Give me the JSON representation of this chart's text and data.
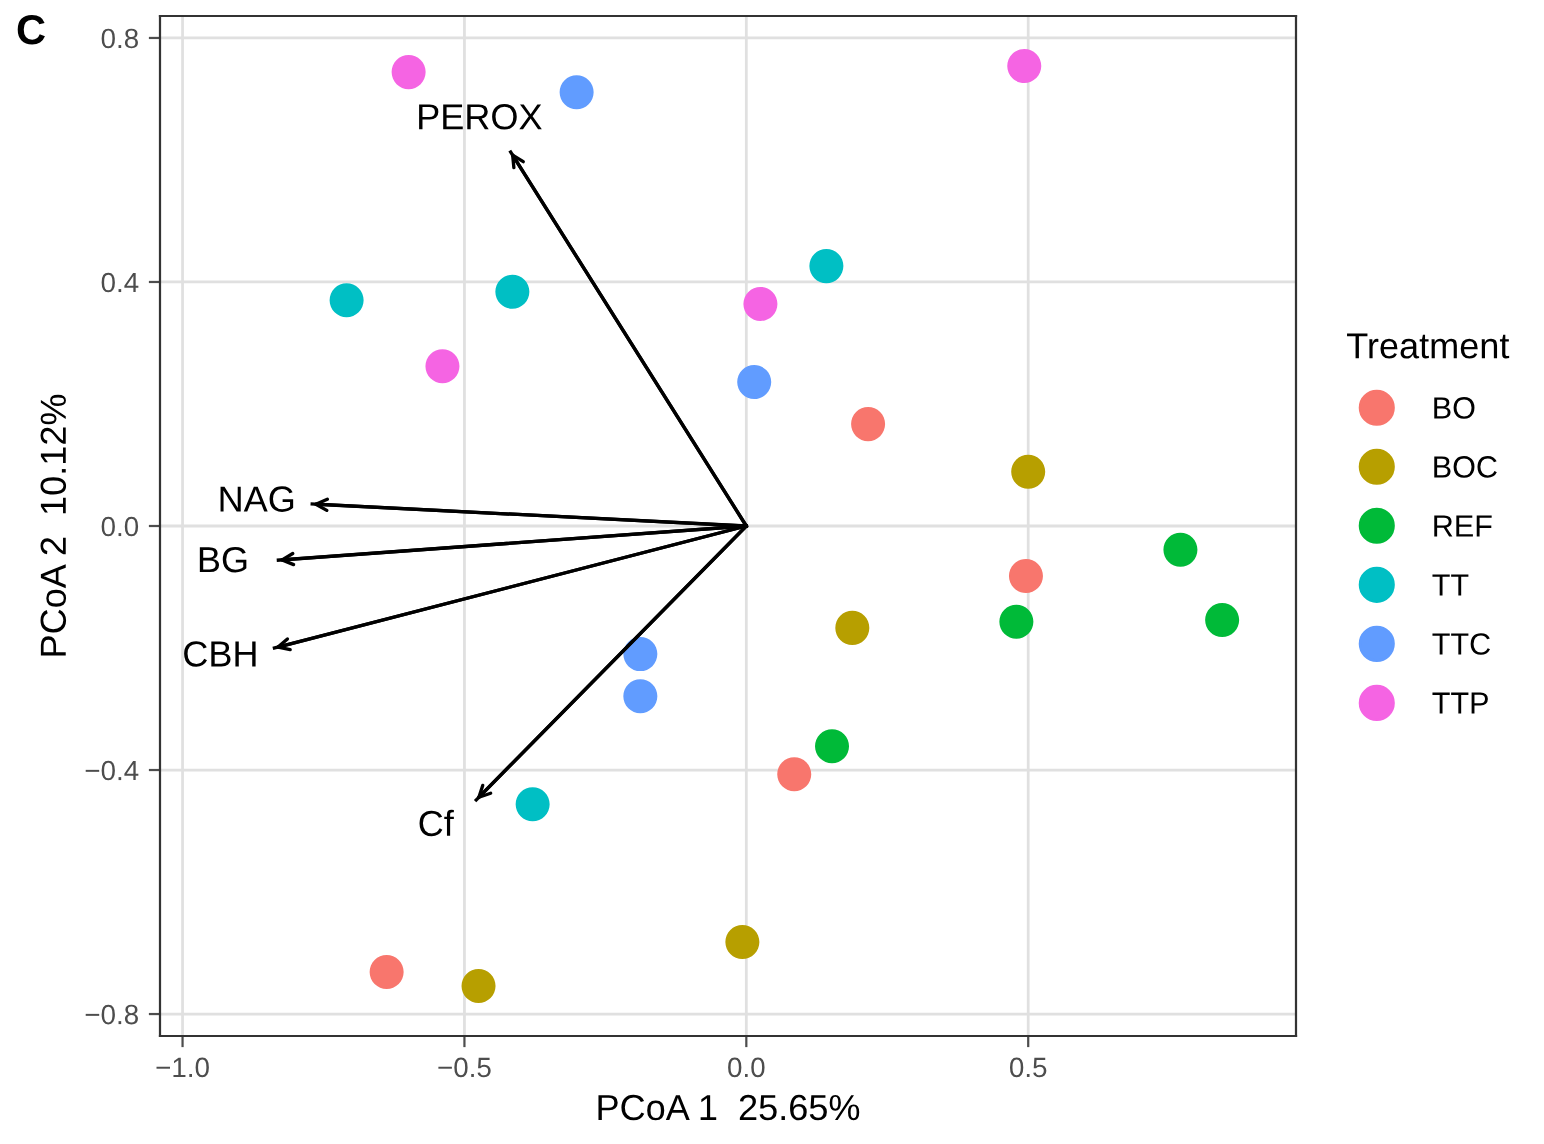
{
  "chart_data": {
    "type": "scatter",
    "title": "C",
    "xlabel": "PCoA 1  25.65%",
    "ylabel": "PCoA 2  10.12%",
    "legend_title": "Treatment",
    "xlim": [
      -1.04,
      0.975
    ],
    "ylim": [
      -0.836,
      0.836
    ],
    "xticks": [
      {
        "value": -1,
        "label": "−1.0"
      },
      {
        "value": -0.5,
        "label": "−0.5"
      },
      {
        "value": 0,
        "label": "0.0"
      },
      {
        "value": 0.5,
        "label": "0.5"
      }
    ],
    "yticks": [
      {
        "value": -0.8,
        "label": "−0.8"
      },
      {
        "value": -0.4,
        "label": "−0.4"
      },
      {
        "value": 0,
        "label": "0.0"
      },
      {
        "value": 0.4,
        "label": "0.4"
      },
      {
        "value": 0.8,
        "label": "0.8"
      }
    ],
    "grid": true,
    "legend": "right",
    "series": [
      {
        "name": "BO",
        "marker": "circle",
        "color": "#f8766d",
        "x": [
          0.216,
          0.496,
          0.085,
          -0.638
        ],
        "values": [
          0.167,
          -0.082,
          -0.407,
          -0.731
        ]
      },
      {
        "name": "BOC",
        "marker": "circle",
        "color": "#b79f00",
        "x": [
          0.5,
          0.188,
          -0.007,
          -0.475
        ],
        "values": [
          0.089,
          -0.167,
          -0.682,
          -0.754
        ]
      },
      {
        "name": "REF",
        "marker": "circle",
        "color": "#00ba38",
        "x": [
          0.77,
          0.844,
          0.479,
          0.152
        ],
        "values": [
          -0.039,
          -0.154,
          -0.157,
          -0.361
        ]
      },
      {
        "name": "TT",
        "marker": "circle",
        "color": "#00bfc4",
        "x": [
          -0.709,
          -0.415,
          0.142,
          -0.379
        ],
        "values": [
          0.37,
          0.384,
          0.426,
          -0.456
        ]
      },
      {
        "name": "TTC",
        "marker": "circle",
        "color": "#619cff",
        "x": [
          -0.301,
          0.014,
          -0.188,
          -0.188
        ],
        "values": [
          0.711,
          0.236,
          -0.21,
          -0.279
        ]
      },
      {
        "name": "TTP",
        "marker": "circle",
        "color": "#f564e3",
        "x": [
          -0.599,
          0.493,
          0.025,
          -0.539
        ],
        "values": [
          0.744,
          0.754,
          0.364,
          0.262
        ]
      },
      {
        "type": "line",
        "name": "PEROX",
        "color": "#000000",
        "x": [
          0,
          -0.418
        ],
        "values": [
          0,
          0.613
        ]
      },
      {
        "type": "line",
        "name": "NAG",
        "color": "#000000",
        "x": [
          0,
          -0.77
        ],
        "values": [
          0,
          0.036
        ]
      },
      {
        "type": "line",
        "name": "BG",
        "color": "#000000",
        "x": [
          0,
          -0.83
        ],
        "values": [
          0,
          -0.056
        ]
      },
      {
        "type": "line",
        "name": "CBH",
        "color": "#000000",
        "x": [
          0,
          -0.837
        ],
        "values": [
          0,
          -0.2
        ]
      },
      {
        "type": "line",
        "name": "Cf",
        "color": "#000000",
        "x": [
          0,
          -0.479
        ],
        "values": [
          0,
          -0.449
        ]
      }
    ]
  }
}
